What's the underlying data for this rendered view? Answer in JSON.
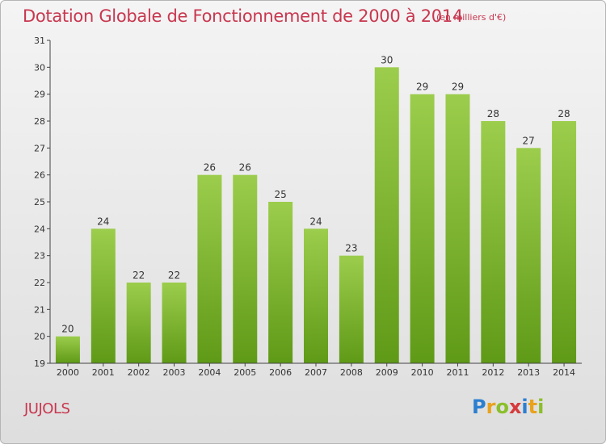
{
  "header": {
    "title": "Dotation Globale de Fonctionnement de 2000 à 2014",
    "unit": "(en milliers d'€)"
  },
  "footer": {
    "commune": "JUJOLS",
    "logo": {
      "letters": [
        "P",
        "r",
        "o",
        "x",
        "i",
        "t",
        "i"
      ],
      "colors": [
        "#2c7fd0",
        "#e8a21c",
        "#8bbf2b",
        "#d63a3a",
        "#2c7fd0",
        "#e8a21c",
        "#8bbf2b"
      ]
    }
  },
  "chart_data": {
    "type": "bar",
    "categories": [
      "2000",
      "2001",
      "2002",
      "2003",
      "2004",
      "2005",
      "2006",
      "2007",
      "2008",
      "2009",
      "2010",
      "2011",
      "2012",
      "2013",
      "2014"
    ],
    "values": [
      20,
      24,
      22,
      22,
      26,
      26,
      25,
      24,
      23,
      30,
      29,
      29,
      28,
      27,
      28
    ],
    "ylim": [
      19,
      31
    ],
    "yticks": [
      19,
      20,
      21,
      22,
      23,
      24,
      25,
      26,
      27,
      28,
      29,
      30,
      31
    ],
    "grid": false,
    "colors": {
      "bar_top": "#9ccd4c",
      "bar_bottom": "#5f9a17",
      "axis": "#444444"
    }
  }
}
